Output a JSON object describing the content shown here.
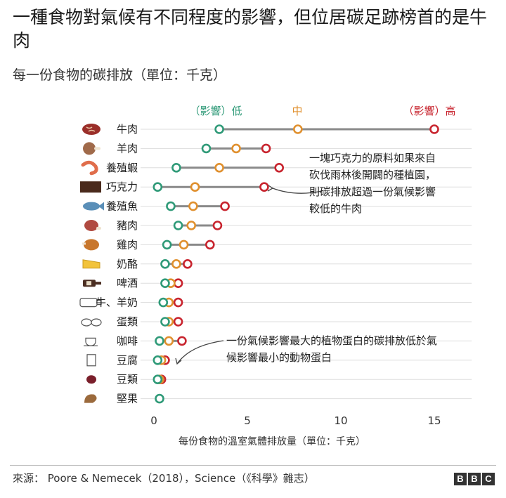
{
  "title": "一種食物對氣候有不同程度的影響，但位居碳足跡榜首的是牛肉",
  "subtitle": "每一份食物的碳排放（單位：千克）",
  "source": "來源： Poore & Nemecek（2018），Science（《科學》雜志）",
  "brand": [
    "B",
    "B",
    "C"
  ],
  "legend": {
    "low": "（影響）低",
    "mid": "中",
    "high": "（影響）高"
  },
  "annotations": [
    "一塊巧克力的原料如果來自砍伐雨林後開闢的種植園，則碳排放超過一份氣候影響較低的牛肉",
    "一份氣候影響最大的植物蛋白的碳排放低於氣候影響最小的動物蛋白"
  ],
  "colors": {
    "low": "#2f9a78",
    "mid": "#e0902e",
    "high": "#c8242e",
    "range_line": "#8a8a8a",
    "grid": "#dddddd"
  },
  "chart_data": {
    "type": "dumbbell",
    "xlabel": "每份食物的溫室氣體排放量（單位：千克）",
    "xlim": [
      0,
      17
    ],
    "xticks": [
      0,
      5,
      10,
      15
    ],
    "grid": true,
    "categories": [
      "牛肉",
      "羊肉",
      "養殖蝦",
      "巧克力",
      "養殖魚",
      "豬肉",
      "雞肉",
      "奶酪",
      "啤酒",
      "牛、羊奶",
      "蛋類",
      "咖啡",
      "豆腐",
      "豆類",
      "堅果"
    ],
    "icons": [
      "steak-icon",
      "lamb-icon",
      "shrimp-icon",
      "chocolate-icon",
      "fish-icon",
      "pork-icon",
      "chicken-icon",
      "cheese-icon",
      "beer-icon",
      "milk-icon",
      "eggs-icon",
      "coffee-icon",
      "tofu-icon",
      "beans-icon",
      "nuts-icon"
    ],
    "series": [
      {
        "name": "低",
        "values": [
          3.5,
          2.8,
          1.2,
          0.2,
          0.9,
          1.3,
          0.7,
          0.6,
          0.6,
          0.5,
          0.6,
          0.3,
          0.2,
          0.2,
          0.3
        ]
      },
      {
        "name": "中",
        "values": [
          7.7,
          4.4,
          3.5,
          2.2,
          2.1,
          2.0,
          1.6,
          1.2,
          0.9,
          0.8,
          0.8,
          0.8,
          0.4,
          0.3,
          null
        ]
      },
      {
        "name": "高",
        "values": [
          15.0,
          6.0,
          6.7,
          5.9,
          3.8,
          3.4,
          3.0,
          1.8,
          1.3,
          1.3,
          1.3,
          1.5,
          0.6,
          0.4,
          null
        ]
      }
    ]
  }
}
